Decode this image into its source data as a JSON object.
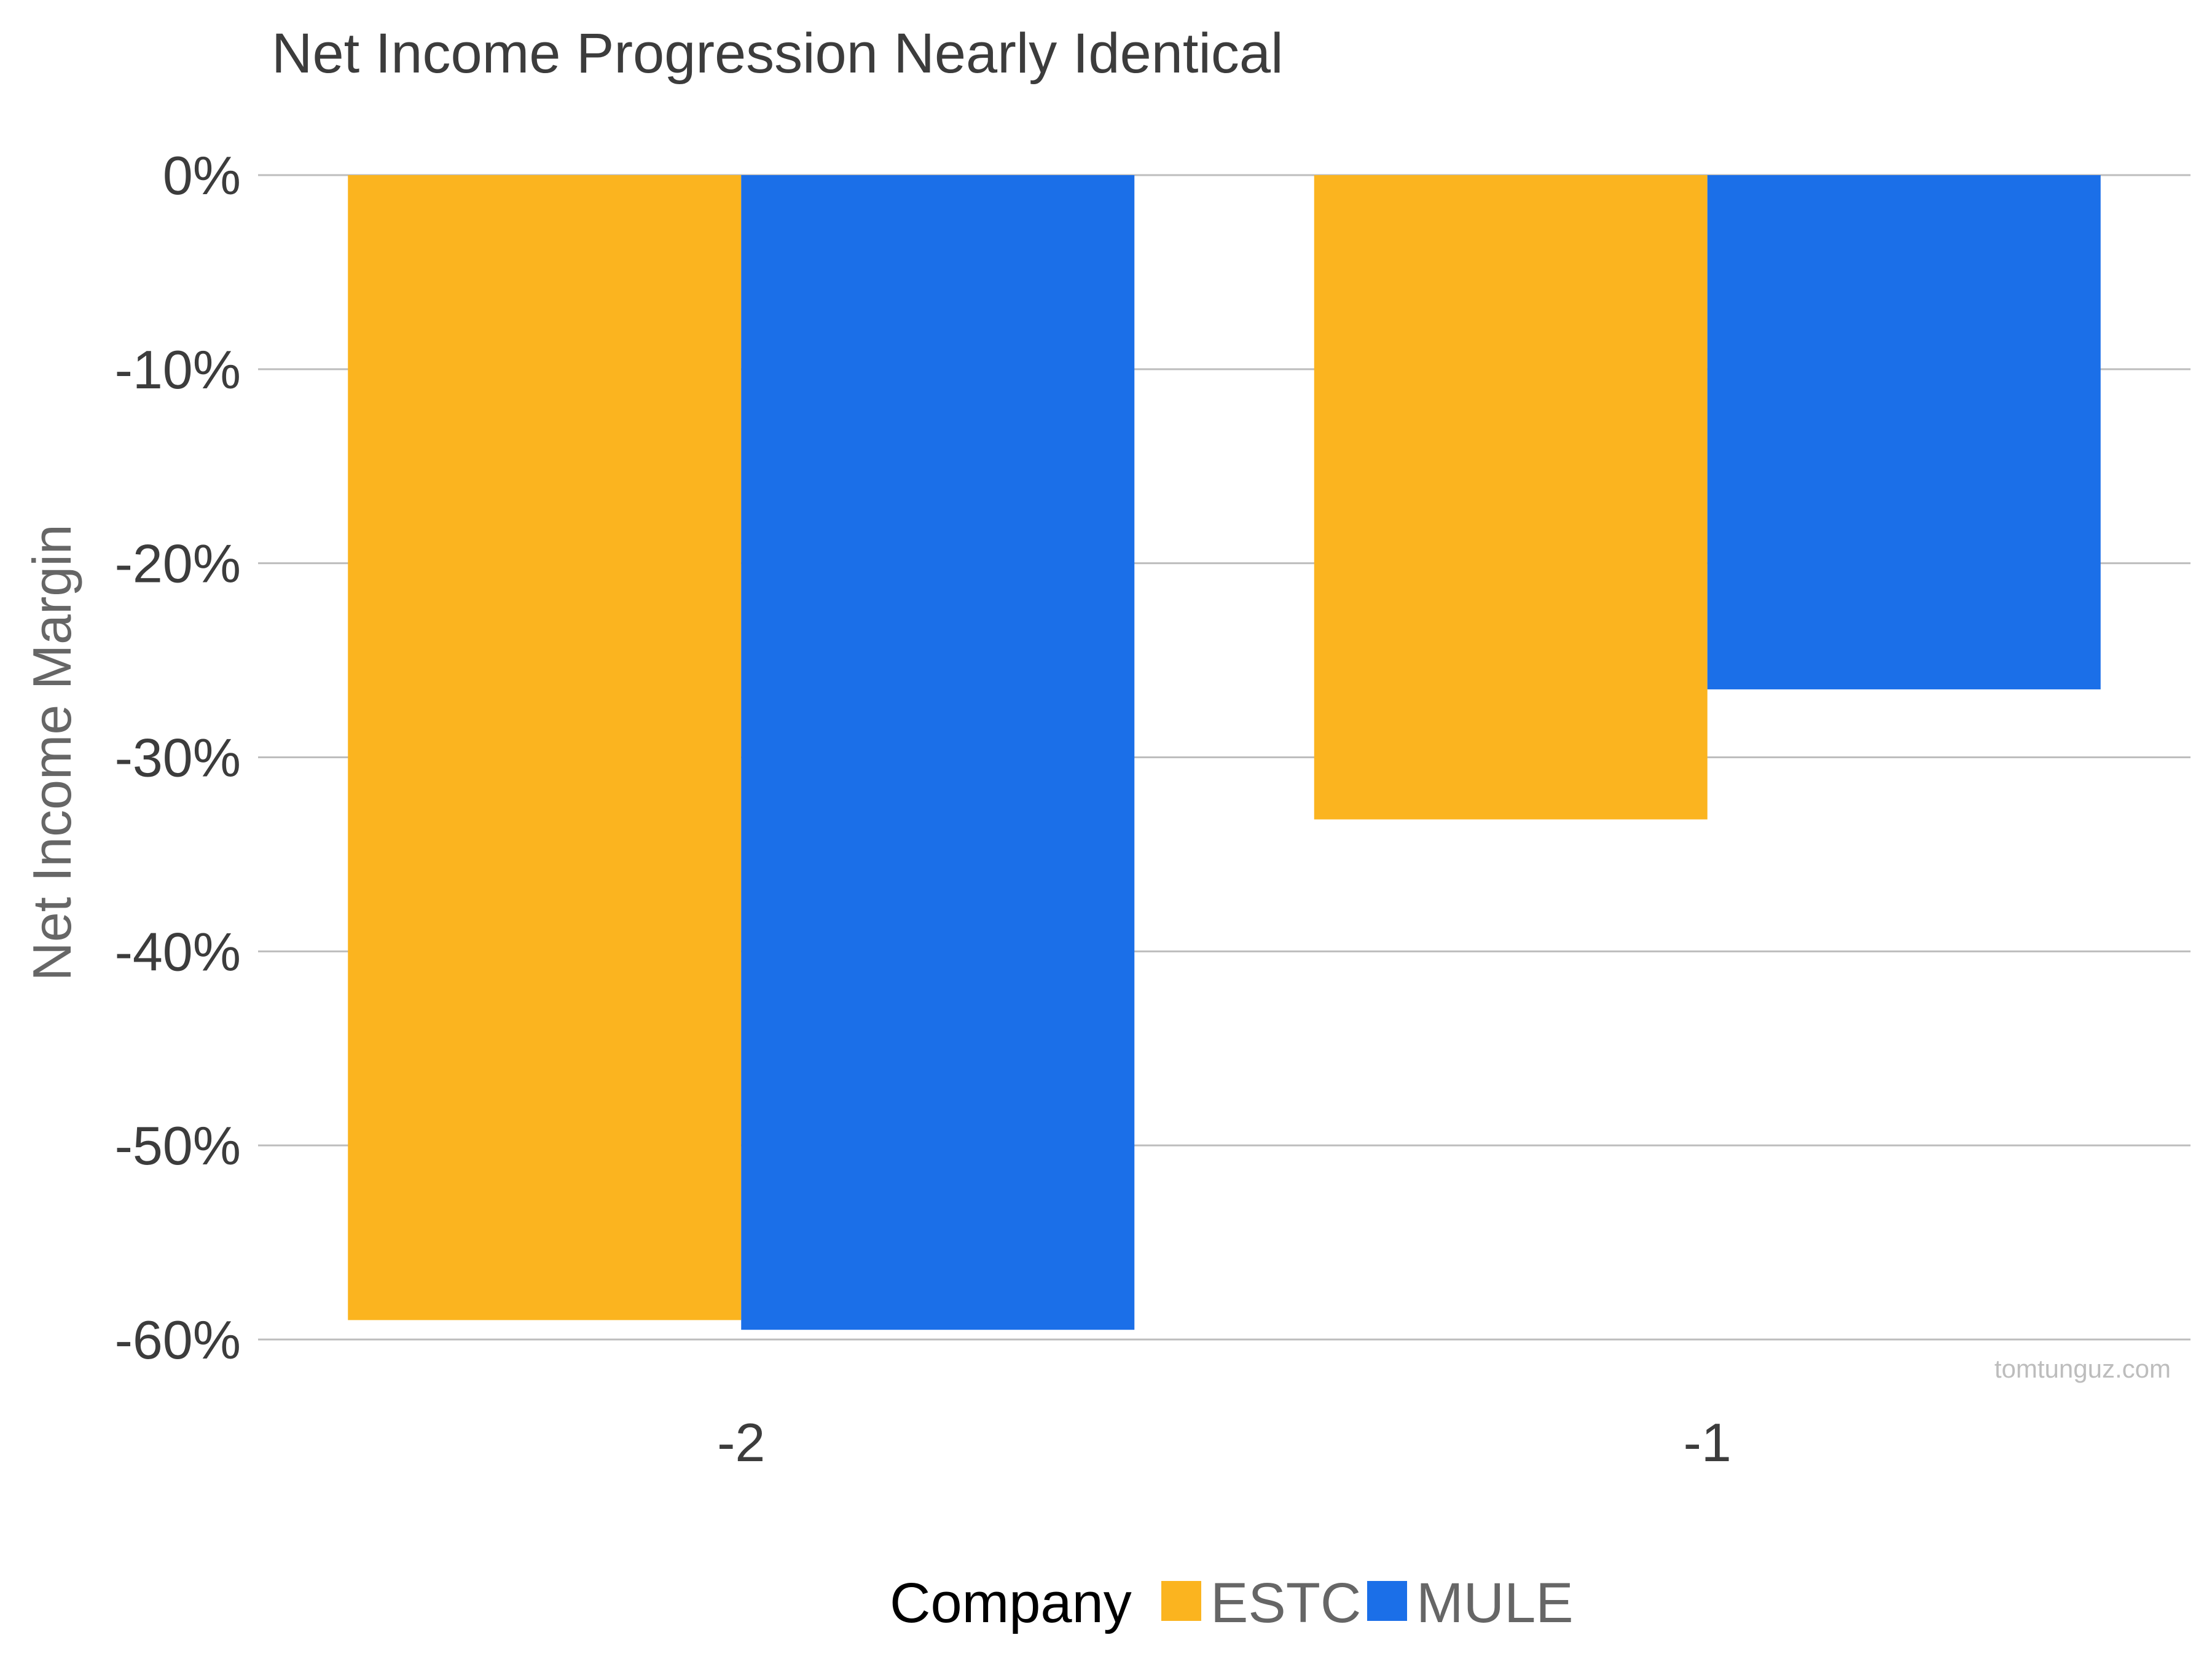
{
  "chart_data": {
    "type": "bar",
    "title": "Net Income Progression Nearly Identical",
    "ylabel": "Net Income Margin",
    "xlabel": "",
    "categories": [
      "-2",
      "-1"
    ],
    "series": [
      {
        "name": "ESTC",
        "color": "#fbb41f",
        "values": [
          -59.0,
          -33.2
        ]
      },
      {
        "name": "MULE",
        "color": "#1b6fe8",
        "values": [
          -59.5,
          -26.5
        ]
      }
    ],
    "ylim": [
      -60,
      0
    ],
    "yticks": [
      {
        "value": 0,
        "label": "0%"
      },
      {
        "value": -10,
        "label": "-10%"
      },
      {
        "value": -20,
        "label": "-20%"
      },
      {
        "value": -30,
        "label": "-30%"
      },
      {
        "value": -40,
        "label": "-40%"
      },
      {
        "value": -50,
        "label": "-50%"
      },
      {
        "value": -60,
        "label": "-60%"
      }
    ],
    "grid": true,
    "legend": {
      "title": "Company",
      "position": "bottom"
    },
    "watermark": "tomtunguz.com"
  }
}
